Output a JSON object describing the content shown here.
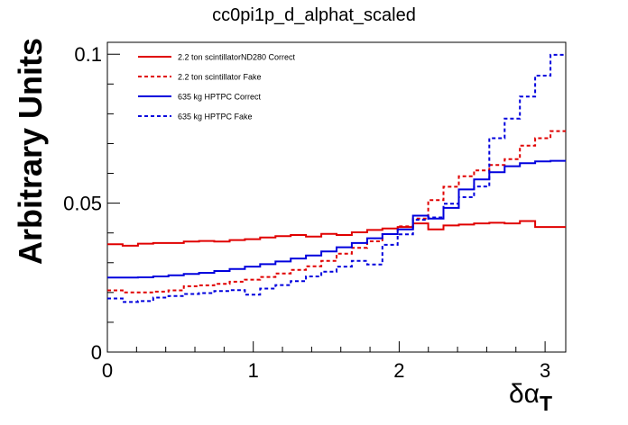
{
  "chart_data": {
    "type": "line",
    "title": "cc0pi1p_d_alphat_scaled",
    "xlabel": "δα",
    "xlabel_subscript": "T",
    "ylabel": "Arbitrary Units",
    "xlim": [
      0,
      3.1416
    ],
    "ylim": [
      0,
      0.104
    ],
    "x_ticks": [
      0,
      1,
      2,
      3
    ],
    "x_tick_labels": [
      "0",
      "1",
      "2",
      "3"
    ],
    "y_ticks": [
      0,
      0.05,
      0.1
    ],
    "y_tick_labels": [
      "0",
      "0.05",
      "0.1"
    ],
    "grid": false,
    "legend_position": "top-left",
    "bin_edges": [
      0,
      0.1047,
      0.2094,
      0.3142,
      0.4189,
      0.5236,
      0.6283,
      0.733,
      0.8378,
      0.9425,
      1.0472,
      1.1519,
      1.2566,
      1.3614,
      1.4661,
      1.5708,
      1.6755,
      1.7802,
      1.885,
      1.9897,
      2.0944,
      2.1991,
      2.3038,
      2.4086,
      2.5133,
      2.618,
      2.7227,
      2.8274,
      2.9322,
      3.0369,
      3.1416
    ],
    "series": [
      {
        "name": "2.2 ton scintillatorND280 Correct",
        "color": "#e00000",
        "dashed": false,
        "values": [
          0.0362,
          0.0357,
          0.0364,
          0.0366,
          0.0366,
          0.0371,
          0.0373,
          0.0371,
          0.0376,
          0.0379,
          0.0385,
          0.0389,
          0.0393,
          0.0388,
          0.0397,
          0.0393,
          0.0402,
          0.041,
          0.0415,
          0.042,
          0.0432,
          0.0412,
          0.0425,
          0.0428,
          0.0432,
          0.0434,
          0.0432,
          0.044,
          0.042,
          0.042
        ]
      },
      {
        "name": "2.2 ton scintillator Fake",
        "color": "#e00000",
        "dashed": true,
        "values": [
          0.0207,
          0.02,
          0.02,
          0.0203,
          0.0207,
          0.0221,
          0.0224,
          0.0229,
          0.0236,
          0.0243,
          0.0252,
          0.0264,
          0.0276,
          0.0288,
          0.0306,
          0.033,
          0.035,
          0.0372,
          0.0396,
          0.0422,
          0.0448,
          0.051,
          0.0555,
          0.059,
          0.061,
          0.0628,
          0.0648,
          0.0693,
          0.0718,
          0.0742
        ]
      },
      {
        "name": "635 kg HPTPC Correct",
        "color": "#0000dd",
        "dashed": false,
        "values": [
          0.025,
          0.025,
          0.0251,
          0.0254,
          0.0258,
          0.0262,
          0.0266,
          0.0272,
          0.0279,
          0.0287,
          0.0295,
          0.0304,
          0.0314,
          0.0324,
          0.0338,
          0.0352,
          0.0366,
          0.0382,
          0.0396,
          0.0412,
          0.0458,
          0.0448,
          0.0484,
          0.0546,
          0.058,
          0.0604,
          0.0624,
          0.0634,
          0.064,
          0.0642
        ]
      },
      {
        "name": "635 kg HPTPC Fake",
        "color": "#0000dd",
        "dashed": true,
        "values": [
          0.018,
          0.0168,
          0.0171,
          0.0183,
          0.0188,
          0.0195,
          0.0198,
          0.0205,
          0.0208,
          0.0193,
          0.0213,
          0.0225,
          0.0238,
          0.0254,
          0.027,
          0.0287,
          0.0306,
          0.0294,
          0.036,
          0.0395,
          0.0444,
          0.0452,
          0.0498,
          0.052,
          0.0556,
          0.0718,
          0.0784,
          0.0858,
          0.0928,
          0.0998
        ]
      }
    ]
  }
}
